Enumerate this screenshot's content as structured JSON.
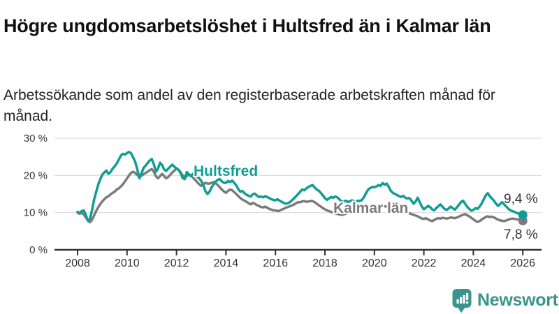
{
  "title": "Högre ungdomsarbetslöshet i Hultsfred än i Kalmar län",
  "subtitle": "Arbetssökande som andel av den registerbaserade arbetskraften månad för månad.",
  "branding": {
    "logo_text": "Newsworthy",
    "logo_color": "#3b948d",
    "logo_icon": "bar-chart-speech-bubble"
  },
  "chart_data": {
    "type": "line",
    "title": "Högre ungdomsarbetslöshet i Hultsfred än i Kalmar län",
    "xlabel": "",
    "ylabel": "",
    "x_start_year": 2008,
    "x_interval_months": 1,
    "x_ticks": [
      2008,
      2010,
      2012,
      2014,
      2016,
      2018,
      2020,
      2022,
      2024,
      2026
    ],
    "y_ticks": [
      0,
      10,
      20,
      30
    ],
    "y_tick_suffix": " %",
    "ylim": [
      0,
      30
    ],
    "grid": true,
    "legend_position": "inline-labels",
    "colors": {
      "grid": "#d9d9d9",
      "axis": "#333333"
    },
    "series": [
      {
        "name": "Kalmar län",
        "color": "#7b7b7e",
        "end_label": "7,8 %",
        "end_value": 7.8,
        "values": [
          10.0,
          9.7,
          9.9,
          9.5,
          8.7,
          7.9,
          7.4,
          8.0,
          9.2,
          10.4,
          11.4,
          12.3,
          13.0,
          13.6,
          14.1,
          14.4,
          14.9,
          15.3,
          15.6,
          16.2,
          16.5,
          17.0,
          17.6,
          18.4,
          19.2,
          20.0,
          20.7,
          21.0,
          20.6,
          20.1,
          19.6,
          19.9,
          20.3,
          20.6,
          21.0,
          21.4,
          21.7,
          21.0,
          19.8,
          19.2,
          19.8,
          20.4,
          19.8,
          19.2,
          19.6,
          20.2,
          20.8,
          21.3,
          21.9,
          21.5,
          20.8,
          20.0,
          19.4,
          19.8,
          20.3,
          20.0,
          19.4,
          18.8,
          18.2,
          17.6,
          17.2,
          17.6,
          18.0,
          17.8,
          17.8,
          18.0,
          18.2,
          17.9,
          17.4,
          16.8,
          16.2,
          15.7,
          15.3,
          15.8,
          16.2,
          16.0,
          15.5,
          15.0,
          14.4,
          13.9,
          13.5,
          13.2,
          12.9,
          12.5,
          12.2,
          12.6,
          12.4,
          12.0,
          11.8,
          11.5,
          11.4,
          11.6,
          11.3,
          11.0,
          10.8,
          10.6,
          10.6,
          10.4,
          10.5,
          10.8,
          11.0,
          11.3,
          11.5,
          11.7,
          11.9,
          12.2,
          12.5,
          12.8,
          12.8,
          13.0,
          13.1,
          12.9,
          13.0,
          13.1,
          13.1,
          12.8,
          12.4,
          12.0,
          11.6,
          11.2,
          10.9,
          10.6,
          10.4,
          10.2,
          10.0,
          9.8,
          9.6,
          9.5,
          9.4,
          9.5,
          9.7,
          9.9,
          10.1,
          10.4,
          10.6,
          10.5,
          10.3,
          10.2,
          10.4,
          10.6,
          10.8,
          11.0,
          11.1,
          11.2,
          11.2,
          11.4,
          11.6,
          11.7,
          11.8,
          11.7,
          11.6,
          11.5,
          11.5,
          11.3,
          11.0,
          10.7,
          10.4,
          10.2,
          10.3,
          10.1,
          9.9,
          9.8,
          9.6,
          9.4,
          9.2,
          9.0,
          8.7,
          8.4,
          8.3,
          8.5,
          8.2,
          7.9,
          7.7,
          8.0,
          8.3,
          8.5,
          8.4,
          8.6,
          8.5,
          8.4,
          8.5,
          8.7,
          8.6,
          8.5,
          8.7,
          8.9,
          9.2,
          9.4,
          9.6,
          9.3,
          9.0,
          8.6,
          8.2,
          7.8,
          7.5,
          7.7,
          8.1,
          8.5,
          8.8,
          9.0,
          8.8,
          8.9,
          8.7,
          8.4,
          8.1,
          7.9,
          7.8,
          7.7,
          7.9,
          8.1,
          8.3,
          8.4,
          8.3,
          8.2,
          8.1,
          8.0,
          7.8
        ]
      },
      {
        "name": "Hultsfred",
        "color": "#0f9e94",
        "end_label": "9,4 %",
        "end_value": 9.4,
        "values": [
          10.2,
          9.9,
          10.4,
          10.6,
          9.4,
          7.8,
          8.3,
          10.5,
          13.5,
          15.5,
          17.5,
          19.0,
          20.2,
          20.8,
          21.3,
          20.4,
          20.9,
          21.8,
          22.4,
          23.2,
          24.2,
          25.3,
          25.8,
          25.6,
          26.0,
          26.3,
          25.9,
          24.8,
          23.6,
          21.5,
          19.2,
          20.5,
          22.0,
          22.6,
          23.3,
          24.0,
          24.4,
          23.0,
          21.0,
          21.8,
          23.4,
          22.8,
          21.6,
          21.2,
          21.8,
          22.4,
          22.9,
          22.3,
          21.8,
          21.5,
          20.6,
          19.3,
          19.0,
          20.9,
          20.2,
          19.8,
          20.4,
          20.0,
          19.6,
          19.2,
          18.5,
          17.5,
          15.8,
          15.0,
          15.6,
          16.8,
          17.6,
          18.3,
          18.8,
          19.0,
          18.4,
          18.0,
          18.0,
          18.5,
          18.2,
          18.6,
          18.0,
          17.3,
          16.3,
          15.6,
          15.8,
          15.2,
          14.8,
          14.5,
          14.3,
          14.9,
          15.1,
          14.6,
          14.2,
          14.3,
          14.1,
          14.4,
          14.2,
          13.9,
          13.6,
          13.4,
          13.3,
          13.6,
          13.2,
          12.9,
          12.6,
          12.4,
          12.5,
          12.8,
          13.3,
          13.8,
          14.4,
          15.0,
          15.6,
          16.2,
          16.0,
          16.5,
          16.9,
          17.2,
          17.4,
          16.8,
          16.2,
          15.9,
          15.3,
          14.6,
          13.9,
          13.4,
          13.8,
          14.2,
          14.0,
          14.3,
          14.1,
          13.6,
          13.0,
          12.8,
          13.2,
          12.9,
          13.0,
          13.3,
          13.1,
          12.9,
          13.2,
          13.1,
          13.4,
          14.2,
          15.3,
          16.2,
          16.6,
          16.9,
          16.8,
          17.0,
          17.4,
          17.2,
          17.9,
          17.5,
          17.8,
          16.9,
          15.8,
          15.3,
          15.0,
          14.7,
          14.4,
          14.2,
          14.5,
          14.0,
          13.8,
          13.9,
          13.2,
          12.4,
          13.0,
          14.0,
          12.8,
          11.6,
          10.9,
          11.3,
          11.8,
          11.5,
          10.9,
          10.6,
          11.2,
          11.7,
          12.2,
          11.6,
          11.0,
          10.7,
          11.1,
          11.6,
          11.2,
          10.8,
          11.4,
          12.1,
          12.8,
          13.2,
          12.4,
          11.6,
          11.0,
          10.5,
          10.7,
          11.2,
          11.0,
          11.6,
          12.4,
          13.5,
          14.6,
          15.2,
          14.4,
          13.8,
          13.2,
          12.4,
          11.8,
          12.3,
          12.8,
          12.2,
          11.6,
          11.0,
          10.6,
          10.4,
          10.2,
          9.9,
          9.7,
          9.5,
          9.4
        ]
      }
    ]
  }
}
